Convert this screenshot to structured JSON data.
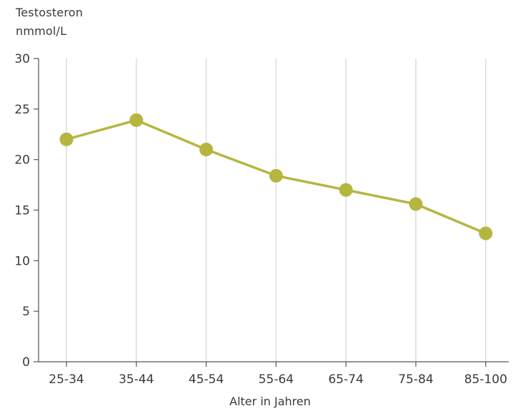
{
  "chart_data": {
    "type": "line",
    "ylabel": [
      "Testosteron",
      "nmmol/L"
    ],
    "xlabel": "Alter in Jahren",
    "categories": [
      "25-34",
      "35-44",
      "45-54",
      "55-64",
      "65-74",
      "75-84",
      "85-100"
    ],
    "series": [
      {
        "values": [
          22,
          23.9,
          21,
          18.4,
          17,
          15.6,
          12.7
        ]
      }
    ],
    "ylim": [
      0,
      30
    ],
    "yticks": [
      0,
      5,
      10,
      15,
      20,
      25,
      30
    ],
    "grid": "vertical",
    "line_color": "#b5b640",
    "grid_color": "#dcdcdc",
    "axis_color": "#555555"
  }
}
